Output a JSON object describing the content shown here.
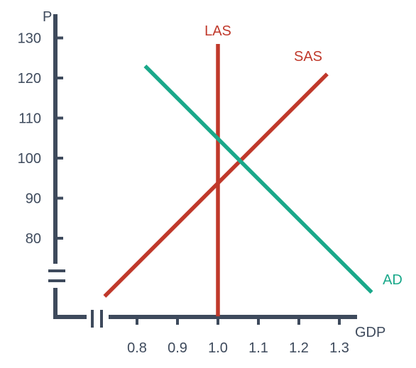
{
  "chart_data": {
    "type": "line",
    "xlabel": "GDP",
    "ylabel": "P",
    "xticks": [
      "0.8",
      "0.9",
      "1.0",
      "1.1",
      "1.2",
      "1.3"
    ],
    "xtick_values": [
      0.8,
      0.9,
      1.0,
      1.1,
      1.2,
      1.3
    ],
    "yticks": [
      "80",
      "90",
      "100",
      "110",
      "120",
      "130"
    ],
    "ytick_values": [
      80,
      90,
      100,
      110,
      120,
      130
    ],
    "y_axis_break": true,
    "x_axis_break": true,
    "grid": false,
    "series": [
      {
        "name": "LAS",
        "color": "#c0392b",
        "points": [
          [
            1.0,
            128.5
          ],
          [
            1.0,
            60.5
          ]
        ]
      },
      {
        "name": "SAS",
        "color": "#c0392b",
        "points": [
          [
            0.72,
            65.5
          ],
          [
            1.27,
            121.0
          ]
        ]
      },
      {
        "name": "AD",
        "color": "#1aa88a",
        "points": [
          [
            0.82,
            123.0
          ],
          [
            1.38,
            66.5
          ]
        ]
      }
    ],
    "colors": {
      "axis": "#3e4a5c",
      "las": "#c0392b",
      "sas": "#c0392b",
      "ad": "#1aa88a"
    }
  }
}
